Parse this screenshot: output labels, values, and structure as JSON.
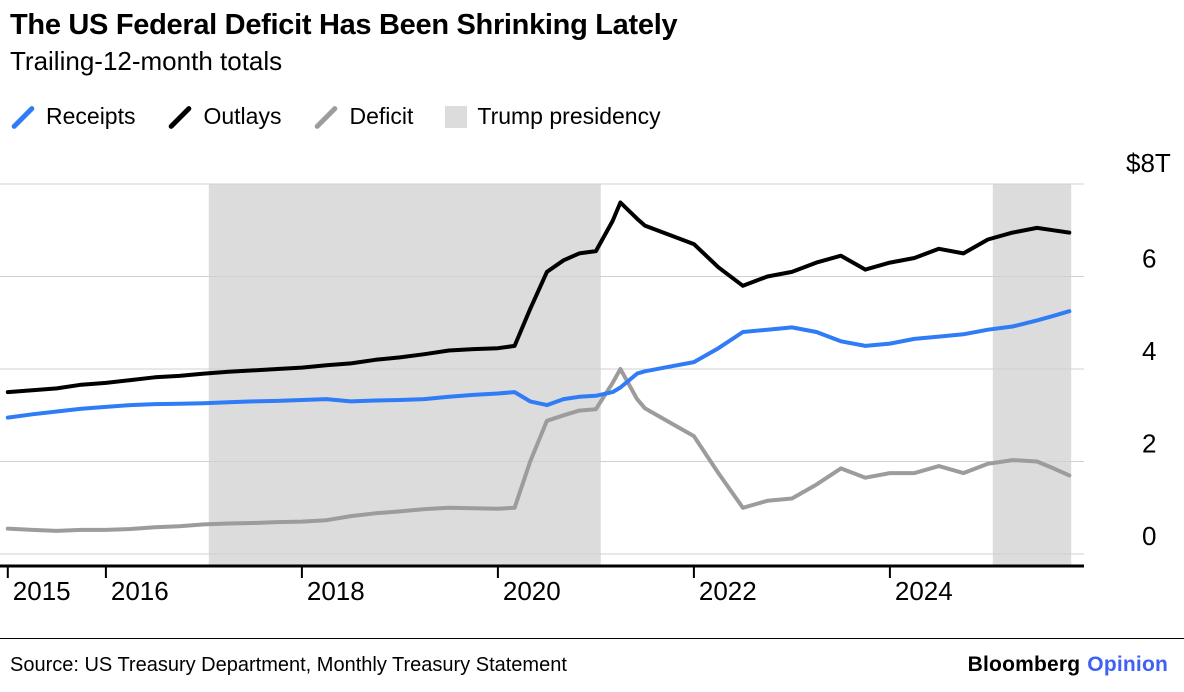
{
  "header": {
    "title": "The US Federal Deficit Has Been Shrinking Lately",
    "subtitle": "Trailing-12-month totals"
  },
  "legend": {
    "items": [
      {
        "label": "Receipts",
        "type": "line",
        "color": "#2f7cf6"
      },
      {
        "label": "Outlays",
        "type": "line",
        "color": "#000000"
      },
      {
        "label": "Deficit",
        "type": "line",
        "color": "#9c9c9c"
      },
      {
        "label": "Trump presidency",
        "type": "band",
        "color": "#dcdcdc"
      }
    ]
  },
  "chart_data": {
    "type": "line",
    "title": "The US Federal Deficit Has Been Shrinking Lately",
    "subtitle": "Trailing-12-month totals",
    "unit": "trillion USD, trailing-12-month totals",
    "x": [
      2015.0,
      2015.25,
      2015.5,
      2015.75,
      2016.0,
      2016.25,
      2016.5,
      2016.75,
      2017.0,
      2017.25,
      2017.5,
      2017.75,
      2018.0,
      2018.25,
      2018.5,
      2018.75,
      2019.0,
      2019.25,
      2019.5,
      2019.75,
      2020.0,
      2020.17,
      2020.33,
      2020.5,
      2020.67,
      2020.83,
      2021.0,
      2021.17,
      2021.25,
      2021.42,
      2021.5,
      2021.75,
      2022.0,
      2022.25,
      2022.5,
      2022.75,
      2023.0,
      2023.25,
      2023.5,
      2023.75,
      2024.0,
      2024.25,
      2024.5,
      2024.75,
      2025.0,
      2025.25,
      2025.5,
      2025.67,
      2025.83
    ],
    "series": [
      {
        "name": "Deficit",
        "color": "#9c9c9c",
        "values": [
          0.55,
          0.52,
          0.5,
          0.52,
          0.52,
          0.54,
          0.58,
          0.6,
          0.64,
          0.66,
          0.67,
          0.69,
          0.7,
          0.73,
          0.82,
          0.88,
          0.92,
          0.97,
          1.0,
          0.99,
          0.98,
          1.0,
          2.0,
          2.88,
          3.0,
          3.1,
          3.13,
          3.7,
          4.0,
          3.35,
          3.15,
          2.85,
          2.55,
          1.75,
          1.0,
          1.15,
          1.2,
          1.5,
          1.85,
          1.65,
          1.75,
          1.75,
          1.9,
          1.75,
          1.95,
          2.03,
          2.0,
          1.85,
          1.7
        ]
      },
      {
        "name": "Receipts",
        "color": "#2f7cf6",
        "values": [
          2.95,
          3.02,
          3.08,
          3.14,
          3.18,
          3.22,
          3.24,
          3.25,
          3.26,
          3.28,
          3.3,
          3.31,
          3.33,
          3.35,
          3.3,
          3.32,
          3.33,
          3.35,
          3.4,
          3.44,
          3.47,
          3.5,
          3.3,
          3.22,
          3.35,
          3.4,
          3.42,
          3.5,
          3.6,
          3.9,
          3.95,
          4.05,
          4.15,
          4.45,
          4.8,
          4.85,
          4.9,
          4.8,
          4.6,
          4.5,
          4.55,
          4.65,
          4.7,
          4.75,
          4.85,
          4.92,
          5.05,
          5.15,
          5.25
        ]
      },
      {
        "name": "Outlays",
        "color": "#000000",
        "values": [
          3.5,
          3.54,
          3.58,
          3.66,
          3.7,
          3.76,
          3.82,
          3.85,
          3.9,
          3.94,
          3.97,
          4.0,
          4.03,
          4.08,
          4.12,
          4.2,
          4.25,
          4.32,
          4.4,
          4.43,
          4.45,
          4.5,
          5.3,
          6.1,
          6.35,
          6.5,
          6.55,
          7.2,
          7.6,
          7.25,
          7.1,
          6.9,
          6.7,
          6.2,
          5.8,
          6.0,
          6.1,
          6.3,
          6.45,
          6.15,
          6.3,
          6.4,
          6.6,
          6.5,
          6.8,
          6.95,
          7.05,
          7.0,
          6.95
        ]
      }
    ],
    "shaded_regions": [
      {
        "label": "Trump presidency",
        "from": 2017.05,
        "to": 2021.05
      },
      {
        "label": "Trump presidency",
        "from": 2025.05,
        "to": 2025.85
      }
    ],
    "x_axis": {
      "ticks": [
        2015,
        2016,
        2018,
        2020,
        2022,
        2024
      ],
      "range": [
        2015,
        2025.92
      ]
    },
    "y_axis": {
      "ticks": [
        0,
        2,
        4,
        6
      ],
      "gridlines": [
        0,
        2,
        4,
        6,
        8
      ],
      "top_label": "$8T",
      "range": [
        0,
        8
      ]
    },
    "styles": {
      "band": "#dcdcdc",
      "grid": "#d0d0d0",
      "axis": "#000000",
      "line_width": 4
    }
  },
  "footer": {
    "source": "Source: US Treasury Department, Monthly Treasury Statement",
    "brand": {
      "name": "Bloomberg",
      "suffix": "Opinion",
      "suffix_color": "#3e62f4"
    }
  }
}
